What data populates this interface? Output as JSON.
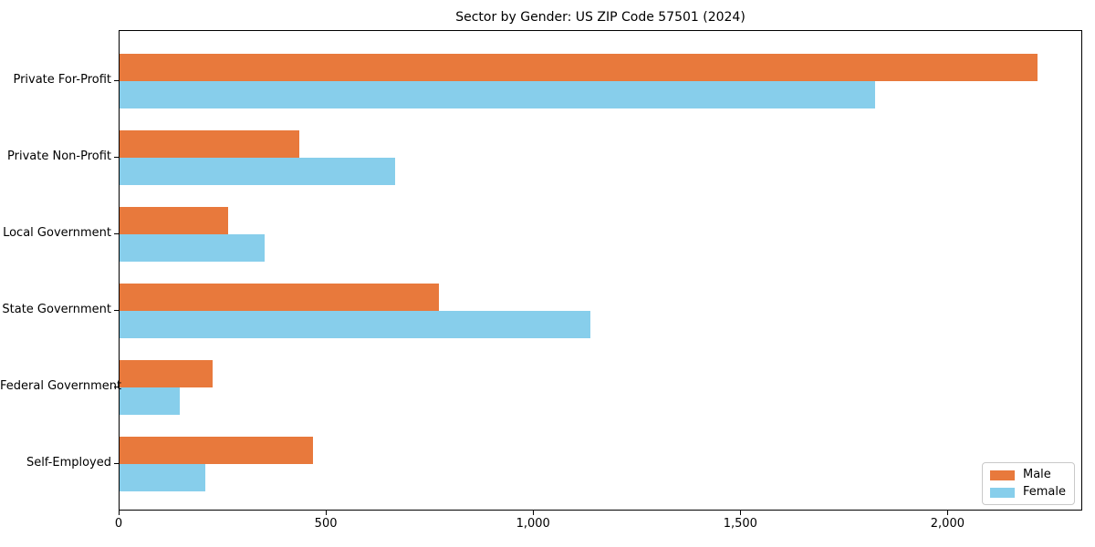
{
  "chart_data": {
    "type": "bar",
    "orientation": "horizontal",
    "title": "Sector by Gender: US ZIP Code 57501 (2024)",
    "categories": [
      "Private For-Profit",
      "Private Non-Profit",
      "Local Government",
      "State Government",
      "Federal Government",
      "Self-Employed"
    ],
    "series": [
      {
        "name": "Male",
        "color": "#E8793C",
        "values": [
          2214,
          434,
          261,
          771,
          225,
          467
        ]
      },
      {
        "name": "Female",
        "color": "#87CEEB",
        "values": [
          1823,
          664,
          350,
          1135,
          145,
          207
        ]
      }
    ],
    "xlabel": "",
    "ylabel": "",
    "xlim": [
      0,
      2325
    ],
    "x_ticks": [
      {
        "value": 0,
        "label": "0"
      },
      {
        "value": 500,
        "label": "500"
      },
      {
        "value": 1000,
        "label": "1,000"
      },
      {
        "value": 1500,
        "label": "1,500"
      },
      {
        "value": 2000,
        "label": "2,000"
      }
    ],
    "grid": false,
    "legend_position": "lower right",
    "background": "#ffffff",
    "spine_color": "#000000"
  }
}
